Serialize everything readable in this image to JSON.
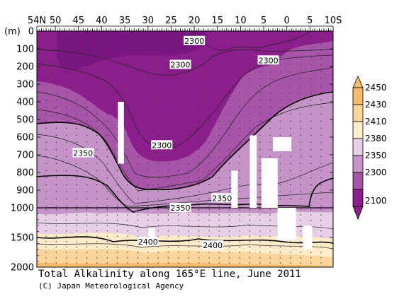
{
  "chart_data": {
    "type": "heatmap",
    "title": "Total Alkalinity along 165°E line, June 2011",
    "credit": "(C) Japan Meteorological Agency",
    "ylabel": "(m)",
    "xlabel": "",
    "x_ticks": [
      {
        "value": 54,
        "label": "54N"
      },
      {
        "value": 50,
        "label": "50"
      },
      {
        "value": 45,
        "label": "45"
      },
      {
        "value": 40,
        "label": "40"
      },
      {
        "value": 35,
        "label": "35"
      },
      {
        "value": 30,
        "label": "30"
      },
      {
        "value": 25,
        "label": "25"
      },
      {
        "value": 20,
        "label": "20"
      },
      {
        "value": 15,
        "label": "15"
      },
      {
        "value": 10,
        "label": "10"
      },
      {
        "value": 5,
        "label": "5"
      },
      {
        "value": 0,
        "label": "0"
      },
      {
        "value": -5,
        "label": "5"
      },
      {
        "value": -10,
        "label": "10S"
      }
    ],
    "y_ticks_upper": [
      {
        "value": 0,
        "label": "0"
      },
      {
        "value": 100,
        "label": "100"
      },
      {
        "value": 200,
        "label": "200"
      },
      {
        "value": 300,
        "label": "300"
      },
      {
        "value": 400,
        "label": "400"
      },
      {
        "value": 500,
        "label": "500"
      },
      {
        "value": 600,
        "label": "600"
      },
      {
        "value": 700,
        "label": "700"
      },
      {
        "value": 800,
        "label": "800"
      },
      {
        "value": 900,
        "label": "900"
      },
      {
        "value": 1000,
        "label": "1000"
      }
    ],
    "y_ticks_lower": [
      {
        "value": 1500,
        "label": "1500"
      },
      {
        "value": 2000,
        "label": "2000"
      }
    ],
    "xlim": [
      54,
      -10
    ],
    "ylim_upper": [
      0,
      1000
    ],
    "ylim_lower": [
      1000,
      2000
    ],
    "colorbar": {
      "labels": [
        "2450",
        "2430",
        "2410",
        "2380",
        "2350",
        "2300",
        "2100"
      ],
      "colors": [
        "#f6ba6c",
        "#fad59c",
        "#fdebc9",
        "#e7d0e6",
        "#c693c8",
        "#a755a9",
        "#8a1f8c"
      ]
    },
    "contour_labels": [
      {
        "text": "2300",
        "lat": 20,
        "depth": 55
      },
      {
        "text": "2300",
        "lat": 23,
        "depth": 190
      },
      {
        "text": "2300",
        "lat": 4,
        "depth": 165
      },
      {
        "text": "2300",
        "lat": 27,
        "depth": 645
      },
      {
        "text": "2350",
        "lat": 44,
        "depth": 690
      },
      {
        "text": "2350",
        "lat": 14,
        "depth": 945
      },
      {
        "text": "2350",
        "lat": 23,
        "depth": 1000
      },
      {
        "text": "2400",
        "lat": 30,
        "depth": 1570
      },
      {
        "text": "2400",
        "lat": 16,
        "depth": 1630
      }
    ]
  }
}
